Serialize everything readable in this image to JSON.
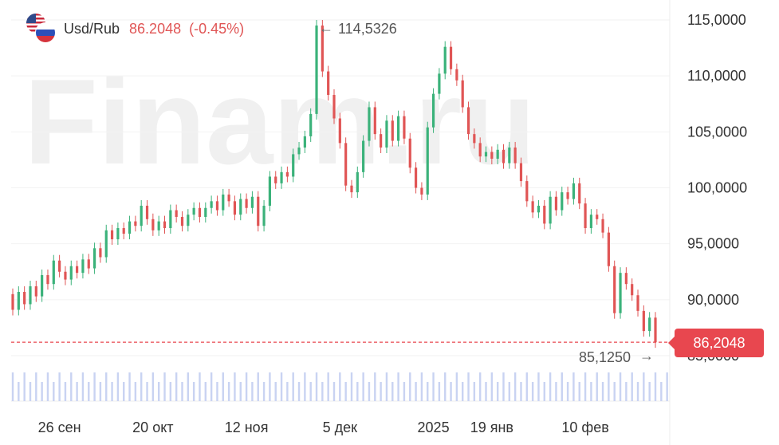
{
  "header": {
    "pair": "Usd/Rub",
    "price": "86.2048",
    "change": "(-0.45%)",
    "flag_icons": [
      "us-flag-icon",
      "ru-flag-icon"
    ]
  },
  "watermark": "Finam.ru",
  "current_price_label": "86,2048",
  "annotations": {
    "max_label": "114,5326",
    "min_label": "85,1250"
  },
  "colors": {
    "up": "#3bb27a",
    "down": "#e05555",
    "volume": "#c9d3f2",
    "price_line": "#e8474f",
    "watermark": "#f0f0f0"
  },
  "chart_data": {
    "type": "candlestick",
    "title": "",
    "series_name": "Usd/Rub",
    "ylim": [
      80,
      116
    ],
    "y_ticks": [
      "115,0000",
      "110,0000",
      "105,0000",
      "100,0000",
      "95,0000",
      "90,0000",
      "85,0000"
    ],
    "y_tick_values": [
      115,
      110,
      105,
      100,
      95,
      90,
      85
    ],
    "x_ticks": [
      "26 сен",
      "20 окт",
      "12 ноя",
      "5 дек",
      "2025",
      "19 янв",
      "10 фев"
    ],
    "x_tick_index": [
      8,
      24,
      40,
      56,
      72,
      82,
      98
    ],
    "grid": true,
    "current_price": 86.2048,
    "max_point": {
      "index": 52,
      "value": 114.5326
    },
    "min_point": {
      "index": 110,
      "value": 85.125
    },
    "candles": [
      [
        90.5,
        89.1
      ],
      [
        89.1,
        90.7
      ],
      [
        90.7,
        89.6
      ],
      [
        89.6,
        91.2
      ],
      [
        91.2,
        90.3
      ],
      [
        90.3,
        92.2
      ],
      [
        92.2,
        91.4
      ],
      [
        91.4,
        93.5
      ],
      [
        93.5,
        92.5
      ],
      [
        92.5,
        91.8
      ],
      [
        91.8,
        93.0
      ],
      [
        93.0,
        92.4
      ],
      [
        92.4,
        93.6
      ],
      [
        93.6,
        92.8
      ],
      [
        92.8,
        94.6
      ],
      [
        94.6,
        93.8
      ],
      [
        93.8,
        96.2
      ],
      [
        96.2,
        95.4
      ],
      [
        95.4,
        96.4
      ],
      [
        96.4,
        95.9
      ],
      [
        95.9,
        97.0
      ],
      [
        97.0,
        96.6
      ],
      [
        96.6,
        98.4
      ],
      [
        98.4,
        97.2
      ],
      [
        97.2,
        96.2
      ],
      [
        96.2,
        97.0
      ],
      [
        97.0,
        96.4
      ],
      [
        96.4,
        98.0
      ],
      [
        98.0,
        97.4
      ],
      [
        97.4,
        96.6
      ],
      [
        96.6,
        97.6
      ],
      [
        97.6,
        98.2
      ],
      [
        98.2,
        97.4
      ],
      [
        97.4,
        98.2
      ],
      [
        98.2,
        98.8
      ],
      [
        98.8,
        98.0
      ],
      [
        98.0,
        99.4
      ],
      [
        99.4,
        98.8
      ],
      [
        98.8,
        97.6
      ],
      [
        97.6,
        99.0
      ],
      [
        99.0,
        98.2
      ],
      [
        98.2,
        99.2
      ],
      [
        99.2,
        96.6
      ],
      [
        96.6,
        98.4
      ],
      [
        98.4,
        101.0
      ],
      [
        101.0,
        100.4
      ],
      [
        100.4,
        101.4
      ],
      [
        101.4,
        101.0
      ],
      [
        101.0,
        103.0
      ],
      [
        103.0,
        103.6
      ],
      [
        103.6,
        104.6
      ],
      [
        104.6,
        106.6
      ],
      [
        106.6,
        114.5
      ],
      [
        114.5,
        110.4
      ],
      [
        110.4,
        108.3
      ],
      [
        108.3,
        106.2
      ],
      [
        106.2,
        104.0
      ],
      [
        104.0,
        100.2
      ],
      [
        100.2,
        99.6
      ],
      [
        99.6,
        101.4
      ],
      [
        101.4,
        104.2
      ],
      [
        104.2,
        107.2
      ],
      [
        107.2,
        104.8
      ],
      [
        104.8,
        103.6
      ],
      [
        103.6,
        106.0
      ],
      [
        106.0,
        104.2
      ],
      [
        104.2,
        106.4
      ],
      [
        106.4,
        104.4
      ],
      [
        104.4,
        101.8
      ],
      [
        101.8,
        100.0
      ],
      [
        100.0,
        99.4
      ],
      [
        99.4,
        105.4
      ],
      [
        105.4,
        108.4
      ],
      [
        108.4,
        110.2
      ],
      [
        110.2,
        112.6
      ],
      [
        112.6,
        110.6
      ],
      [
        110.6,
        109.6
      ],
      [
        109.6,
        107.2
      ],
      [
        107.2,
        104.8
      ],
      [
        104.8,
        104.0
      ],
      [
        104.0,
        102.8
      ],
      [
        102.8,
        103.2
      ],
      [
        103.2,
        102.6
      ],
      [
        102.6,
        103.4
      ],
      [
        103.4,
        102.2
      ],
      [
        102.2,
        103.6
      ],
      [
        103.6,
        102.2
      ],
      [
        102.2,
        100.6
      ],
      [
        100.6,
        98.8
      ],
      [
        98.8,
        97.8
      ],
      [
        97.8,
        98.4
      ],
      [
        98.4,
        96.8
      ],
      [
        96.8,
        99.2
      ],
      [
        99.2,
        98.0
      ],
      [
        98.0,
        99.6
      ],
      [
        99.6,
        99.0
      ],
      [
        99.0,
        100.4
      ],
      [
        100.4,
        98.6
      ],
      [
        98.6,
        96.4
      ],
      [
        96.4,
        97.6
      ],
      [
        97.6,
        97.2
      ],
      [
        97.2,
        96.0
      ],
      [
        96.0,
        93.0
      ],
      [
        93.0,
        88.8
      ],
      [
        88.8,
        92.4
      ],
      [
        92.4,
        91.4
      ],
      [
        91.4,
        90.4
      ],
      [
        90.4,
        89.0
      ],
      [
        89.0,
        87.2
      ],
      [
        87.2,
        88.4
      ],
      [
        88.4,
        86.2
      ]
    ],
    "volumes": [
      0.3,
      0.2,
      0.3,
      0.2,
      0.3,
      0.2,
      0.3,
      0.2,
      0.3,
      0.2,
      0.3,
      0.2,
      0.3,
      0.2,
      0.3,
      0.2,
      0.3,
      0.2,
      0.3,
      0.2,
      0.3,
      0.2,
      0.3,
      0.2,
      0.3,
      0.2,
      0.3,
      0.2,
      0.3,
      0.2,
      0.3,
      0.2,
      0.3,
      0.2,
      0.3,
      0.2,
      0.3,
      0.2,
      0.3,
      0.2,
      0.3,
      0.2,
      0.3,
      0.2,
      0.3,
      0.2,
      0.3,
      0.2,
      0.3,
      0.2,
      0.3,
      0.2,
      0.3,
      0.2,
      0.3,
      0.2,
      0.3,
      0.2,
      0.3,
      0.2,
      0.3,
      0.2,
      0.3,
      0.2,
      0.3,
      0.2,
      0.3,
      0.2,
      0.3,
      0.2,
      0.3,
      0.2,
      0.3,
      0.2,
      0.3,
      0.2,
      0.3,
      0.2,
      0.3,
      0.2,
      0.3,
      0.2,
      0.3,
      0.2,
      0.3,
      0.2,
      0.3,
      0.2,
      0.3,
      0.2,
      0.3,
      0.2,
      0.3,
      0.2,
      0.3,
      0.2,
      0.3,
      0.2,
      0.3,
      0.2,
      0.3,
      0.2,
      0.3,
      0.2,
      0.3,
      0.2,
      0.3,
      0.2,
      0.3,
      0.2,
      0.3,
      0.2,
      0.3
    ]
  }
}
